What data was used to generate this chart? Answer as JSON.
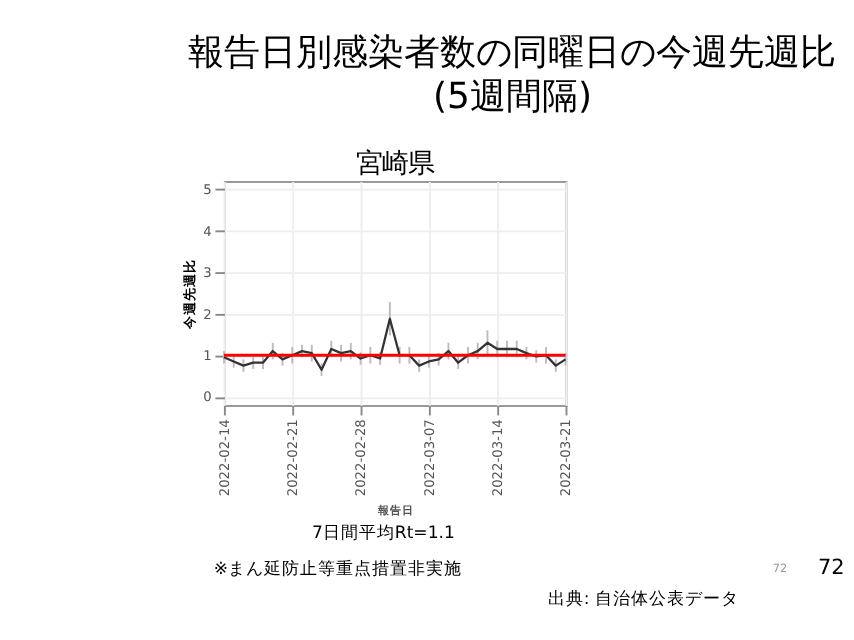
{
  "chart_data": {
    "type": "line",
    "title": "報告日別感染者数の同曜日の今週先週比\n(5週間隔)",
    "subtitle": "宮崎県",
    "xlabel": "報告日",
    "ylabel": "今週先週比",
    "x": [
      "2022-02-14",
      "2022-02-15",
      "2022-02-16",
      "2022-02-17",
      "2022-02-18",
      "2022-02-19",
      "2022-02-20",
      "2022-02-21",
      "2022-02-22",
      "2022-02-23",
      "2022-02-24",
      "2022-02-25",
      "2022-02-26",
      "2022-02-27",
      "2022-02-28",
      "2022-03-01",
      "2022-03-02",
      "2022-03-03",
      "2022-03-04",
      "2022-03-05",
      "2022-03-06",
      "2022-03-07",
      "2022-03-08",
      "2022-03-09",
      "2022-03-10",
      "2022-03-11",
      "2022-03-12",
      "2022-03-13",
      "2022-03-14",
      "2022-03-15",
      "2022-03-16",
      "2022-03-17",
      "2022-03-18",
      "2022-03-19",
      "2022-03-20",
      "2022-03-21"
    ],
    "series": [
      {
        "color": "#333333",
        "values": [
          0.95,
          0.85,
          0.75,
          0.82,
          0.82,
          1.1,
          0.9,
          1.0,
          1.1,
          1.05,
          0.65,
          1.15,
          1.05,
          1.1,
          0.92,
          1.0,
          0.92,
          1.88,
          1.0,
          1.0,
          0.75,
          0.85,
          0.9,
          1.1,
          0.82,
          1.0,
          1.1,
          1.3,
          1.15,
          1.15,
          1.15,
          1.05,
          0.97,
          1.0,
          0.75,
          0.9
        ],
        "errors": [
          0.15,
          0.15,
          0.15,
          0.15,
          0.15,
          0.2,
          0.15,
          0.2,
          0.15,
          0.2,
          0.15,
          0.2,
          0.2,
          0.2,
          0.15,
          0.2,
          0.15,
          0.4,
          0.2,
          0.2,
          0.15,
          0.15,
          0.15,
          0.2,
          0.15,
          0.2,
          0.2,
          0.3,
          0.2,
          0.2,
          0.2,
          0.15,
          0.15,
          0.2,
          0.15,
          0.15
        ]
      }
    ],
    "xlim": [
      "2022-02-14",
      "2022-03-21"
    ],
    "xticks": [
      "2022-02-14",
      "2022-02-21",
      "2022-02-28",
      "2022-03-07",
      "2022-03-14",
      "2022-03-21"
    ],
    "ylim": [
      -0.2,
      5.2
    ],
    "yticks": [
      0,
      1,
      2,
      3,
      4,
      5
    ],
    "ref_lines": [
      {
        "axis": "y",
        "value": 1,
        "label": null,
        "color": "#ff0000"
      }
    ],
    "grid": true,
    "annotations": [
      "7日間平均Rt=1.1",
      "※まん延防止等重点措置非実施",
      "出典: 自治体公表データ",
      "72",
      "72"
    ]
  }
}
